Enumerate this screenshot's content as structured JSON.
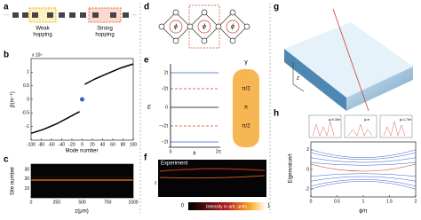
{
  "a": {
    "label": "a",
    "weak_hopping": [
      "Weak",
      "hopping"
    ],
    "strong_hopping": [
      "Strong",
      "hopping"
    ]
  },
  "b": {
    "label": "b",
    "y_label": "β(m⁻¹)",
    "y_exponent": "x 10⁵",
    "x_label": "Mode number",
    "xlim": [
      -100,
      100
    ],
    "xticks": [
      -100,
      -80,
      -60,
      -40,
      -20,
      0,
      20,
      40,
      60,
      80,
      100
    ],
    "ylim": [
      -1.5,
      1.5
    ],
    "yticks": [
      -1,
      -0.5,
      0,
      0.5,
      1
    ],
    "series": [
      {
        "color": "#000000",
        "x": [
          -100,
          -75,
          -50,
          -25,
          -5
        ],
        "values": [
          -1.25,
          -1.1,
          -0.9,
          -0.65,
          -0.45
        ]
      },
      {
        "color": "#000000",
        "x": [
          5,
          25,
          50,
          75,
          100
        ],
        "values": [
          0.55,
          0.75,
          0.95,
          1.15,
          1.3
        ]
      },
      {
        "color": "#3a5fcd",
        "x": [
          0
        ],
        "values": [
          0
        ]
      }
    ]
  },
  "c": {
    "label": "c",
    "y_label": "Site number",
    "x_label": "z(μm)",
    "xlim": [
      0,
      1000
    ],
    "xticks": [
      0,
      250,
      500,
      750,
      1000
    ],
    "ylim": [
      0,
      36
    ],
    "yticks": [
      10,
      20,
      30
    ]
  },
  "d": {
    "label": "d",
    "phases": [
      "ϕ",
      "ϕ",
      "ϕ"
    ]
  },
  "e": {
    "label": "e",
    "y_label": "E",
    "x_label": "k",
    "yticks": [
      "2t",
      "√2t",
      "0",
      "−√2t",
      "−2t"
    ],
    "xticks": [
      "0",
      "2π"
    ],
    "gamma_label": "γ",
    "gammas": [
      "π/2",
      "π",
      "π/2"
    ]
  },
  "f": {
    "label": "f",
    "title": "Experiment",
    "axis_z": "z",
    "axis_x": "x",
    "colorbar_min": "0",
    "colorbar_label": "Intensity in arb. units",
    "colorbar_max": "1"
  },
  "g": {
    "label": "g",
    "axis": "z"
  },
  "h": {
    "label": "h",
    "y_label": "Eigenvalue/t",
    "x_label": "ϕ/π",
    "xlim": [
      0,
      2
    ],
    "xticks": [
      0,
      0.5,
      1,
      1.5,
      2
    ],
    "ylim": [
      -2.8,
      2.8
    ],
    "yticks": [
      -2,
      0,
      2
    ],
    "insets": [
      "ϕ=0.35π",
      "ϕ=π",
      "ϕ=1.75π"
    ]
  }
}
